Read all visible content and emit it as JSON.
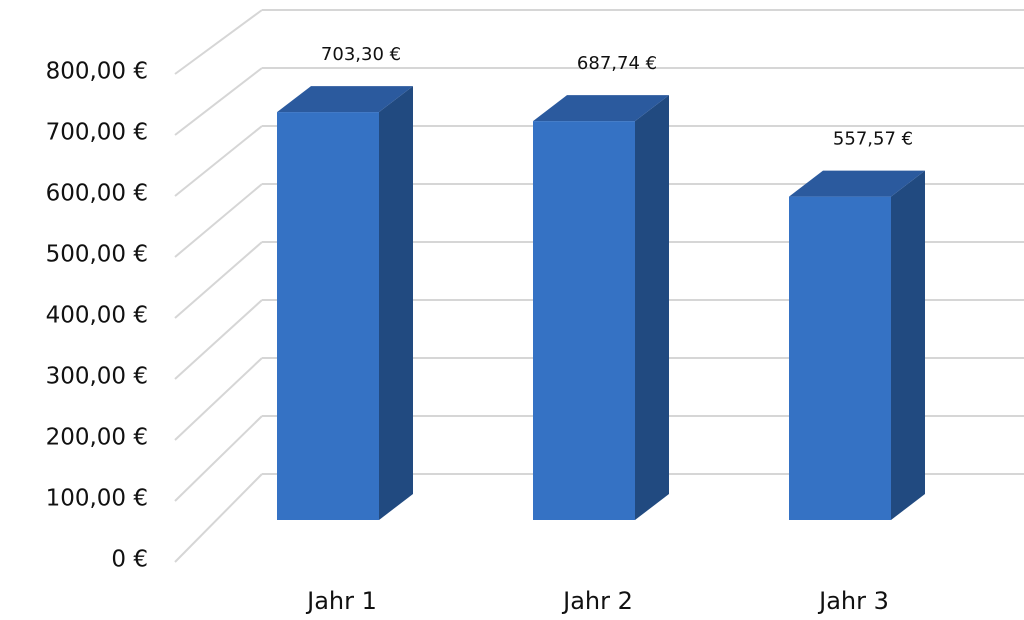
{
  "chart_data": {
    "type": "bar3d",
    "categories": [
      "Jahr 1",
      "Jahr 2",
      "Jahr 3"
    ],
    "values": [
      703.3,
      687.74,
      557.57
    ],
    "value_labels": [
      "703,30 €",
      "687,74 €",
      "557,57 €"
    ],
    "colors": {
      "front": "#3572c4",
      "side": "#214a80",
      "top": "#2b5a9e"
    },
    "ylim": [
      0,
      800
    ],
    "yticks": [
      {
        "value": 0,
        "label": "0 €"
      },
      {
        "value": 100,
        "label": "100,00 €"
      },
      {
        "value": 200,
        "label": "200,00 €"
      },
      {
        "value": 300,
        "label": "300,00 €"
      },
      {
        "value": 400,
        "label": "400,00 €"
      },
      {
        "value": 500,
        "label": "500,00 €"
      },
      {
        "value": 600,
        "label": "600,00 €"
      },
      {
        "value": 700,
        "label": "700,00 €"
      },
      {
        "value": 800,
        "label": "800,00 €"
      }
    ],
    "grid": true
  }
}
